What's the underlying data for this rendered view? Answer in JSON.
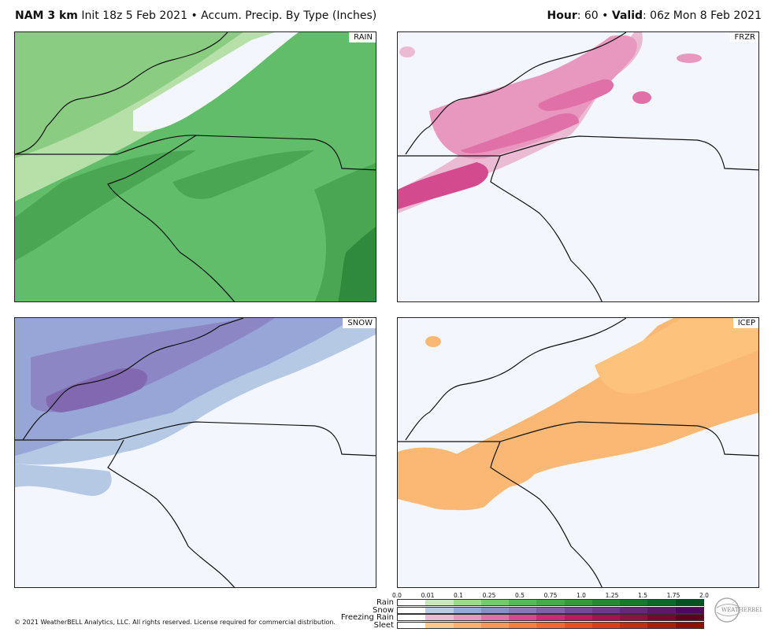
{
  "header": {
    "model": "NAM 3 km",
    "init_text": " Init 18z 5 Feb 2021 • Accum. Precip. By Type (Inches)",
    "hour_label": "Hour",
    "hour_value": ": 60 • ",
    "valid_label": "Valid",
    "valid_value": ": 06z Mon 8 Feb 2021"
  },
  "panels": {
    "rain": "RAIN",
    "frzr": "FRZR",
    "snow": "SNOW",
    "icep": "ICEP"
  },
  "legend": {
    "ticks": [
      "0.0",
      "0.01",
      "0.1",
      "0.25",
      "0.5",
      "0.75",
      "1.0",
      "1.25",
      "1.5",
      "1.75",
      "2.0"
    ],
    "rows": [
      {
        "label": "Rain",
        "colors": [
          "#ffffff",
          "#c8e8c0",
          "#a0d890",
          "#78c870",
          "#58b860",
          "#48a850",
          "#389840",
          "#288838",
          "#187830",
          "#106828",
          "#085020"
        ]
      },
      {
        "label": "Snow",
        "colors": [
          "#ffffff",
          "#b8cce4",
          "#98a8d8",
          "#8890c8",
          "#8878b8",
          "#8060a8",
          "#784898",
          "#703888",
          "#682878",
          "#601868",
          "#500858"
        ]
      },
      {
        "label": "Freezing Rain",
        "colors": [
          "#ffffff",
          "#eebbd4",
          "#e898c0",
          "#e070a8",
          "#d84890",
          "#d02878",
          "#c01860",
          "#a81050",
          "#901040",
          "#780830",
          "#600020"
        ]
      },
      {
        "label": "Sleet",
        "colors": [
          "#ffffff",
          "#fcc890",
          "#fbb070",
          "#f89858",
          "#f48040",
          "#f06830",
          "#e85020",
          "#d84018",
          "#c03010",
          "#a82008",
          "#901000"
        ]
      }
    ]
  },
  "copyright": "© 2021 WeatherBELL Analytics, LLC. All rights reserved. License required for commercial distribution.",
  "logo_text": "WEATHERBELL"
}
